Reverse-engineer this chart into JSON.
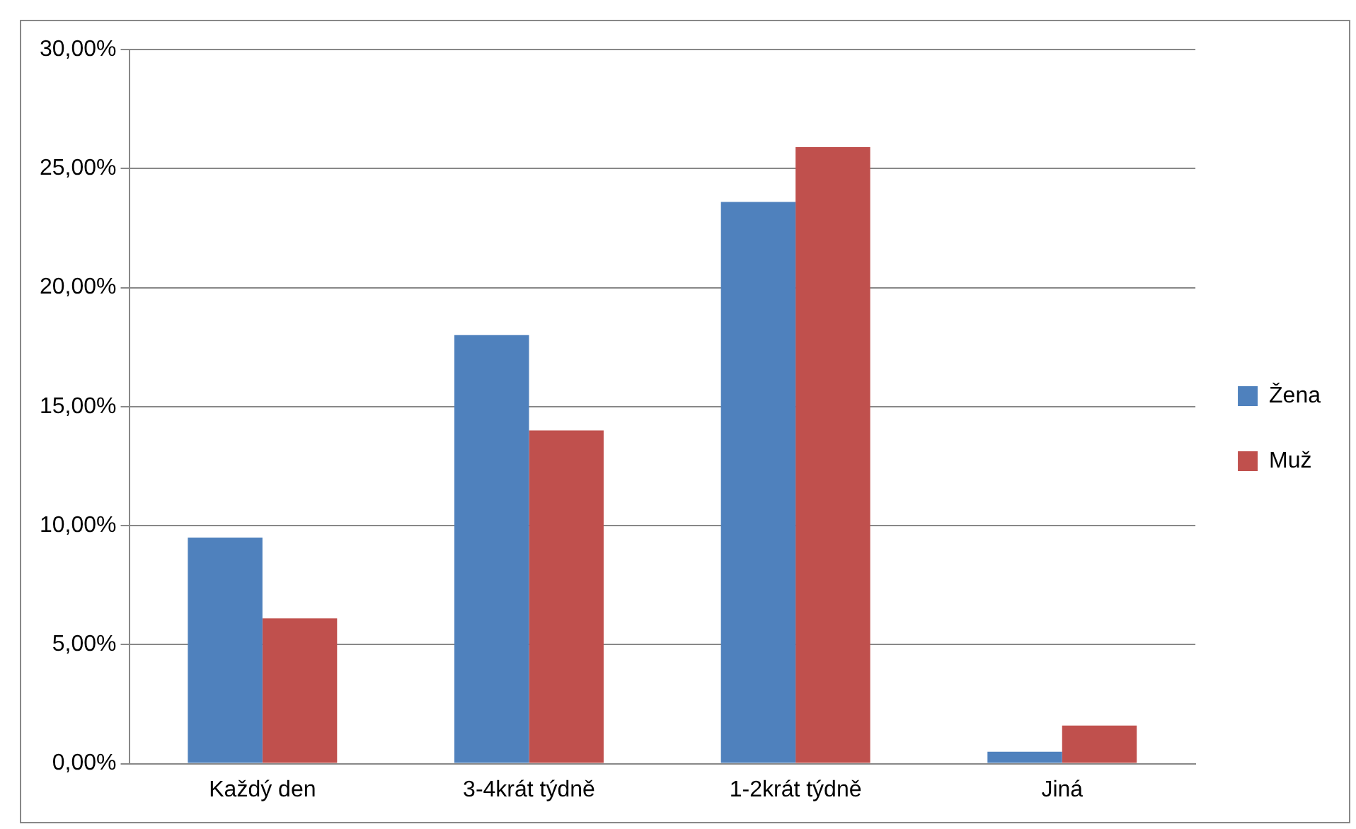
{
  "chart_data": {
    "type": "bar",
    "categories": [
      "Každý den",
      "3-4krát týdně",
      "1-2krát týdně",
      "Jiná"
    ],
    "series": [
      {
        "name": "Žena",
        "color": "#4f81bd",
        "values": [
          9.5,
          18.0,
          23.6,
          0.5
        ]
      },
      {
        "name": "Muž",
        "color": "#c0504d",
        "values": [
          6.1,
          14.0,
          25.9,
          1.6
        ]
      }
    ],
    "ylim": [
      0,
      30
    ],
    "yticks": [
      {
        "value": 0,
        "label": "0,00%"
      },
      {
        "value": 5,
        "label": "5,00%"
      },
      {
        "value": 10,
        "label": "10,00%"
      },
      {
        "value": 15,
        "label": "15,00%"
      },
      {
        "value": 20,
        "label": "20,00%"
      },
      {
        "value": 25,
        "label": "25,00%"
      },
      {
        "value": 30,
        "label": "30,00%"
      }
    ],
    "grid": "y",
    "legend": "right"
  }
}
